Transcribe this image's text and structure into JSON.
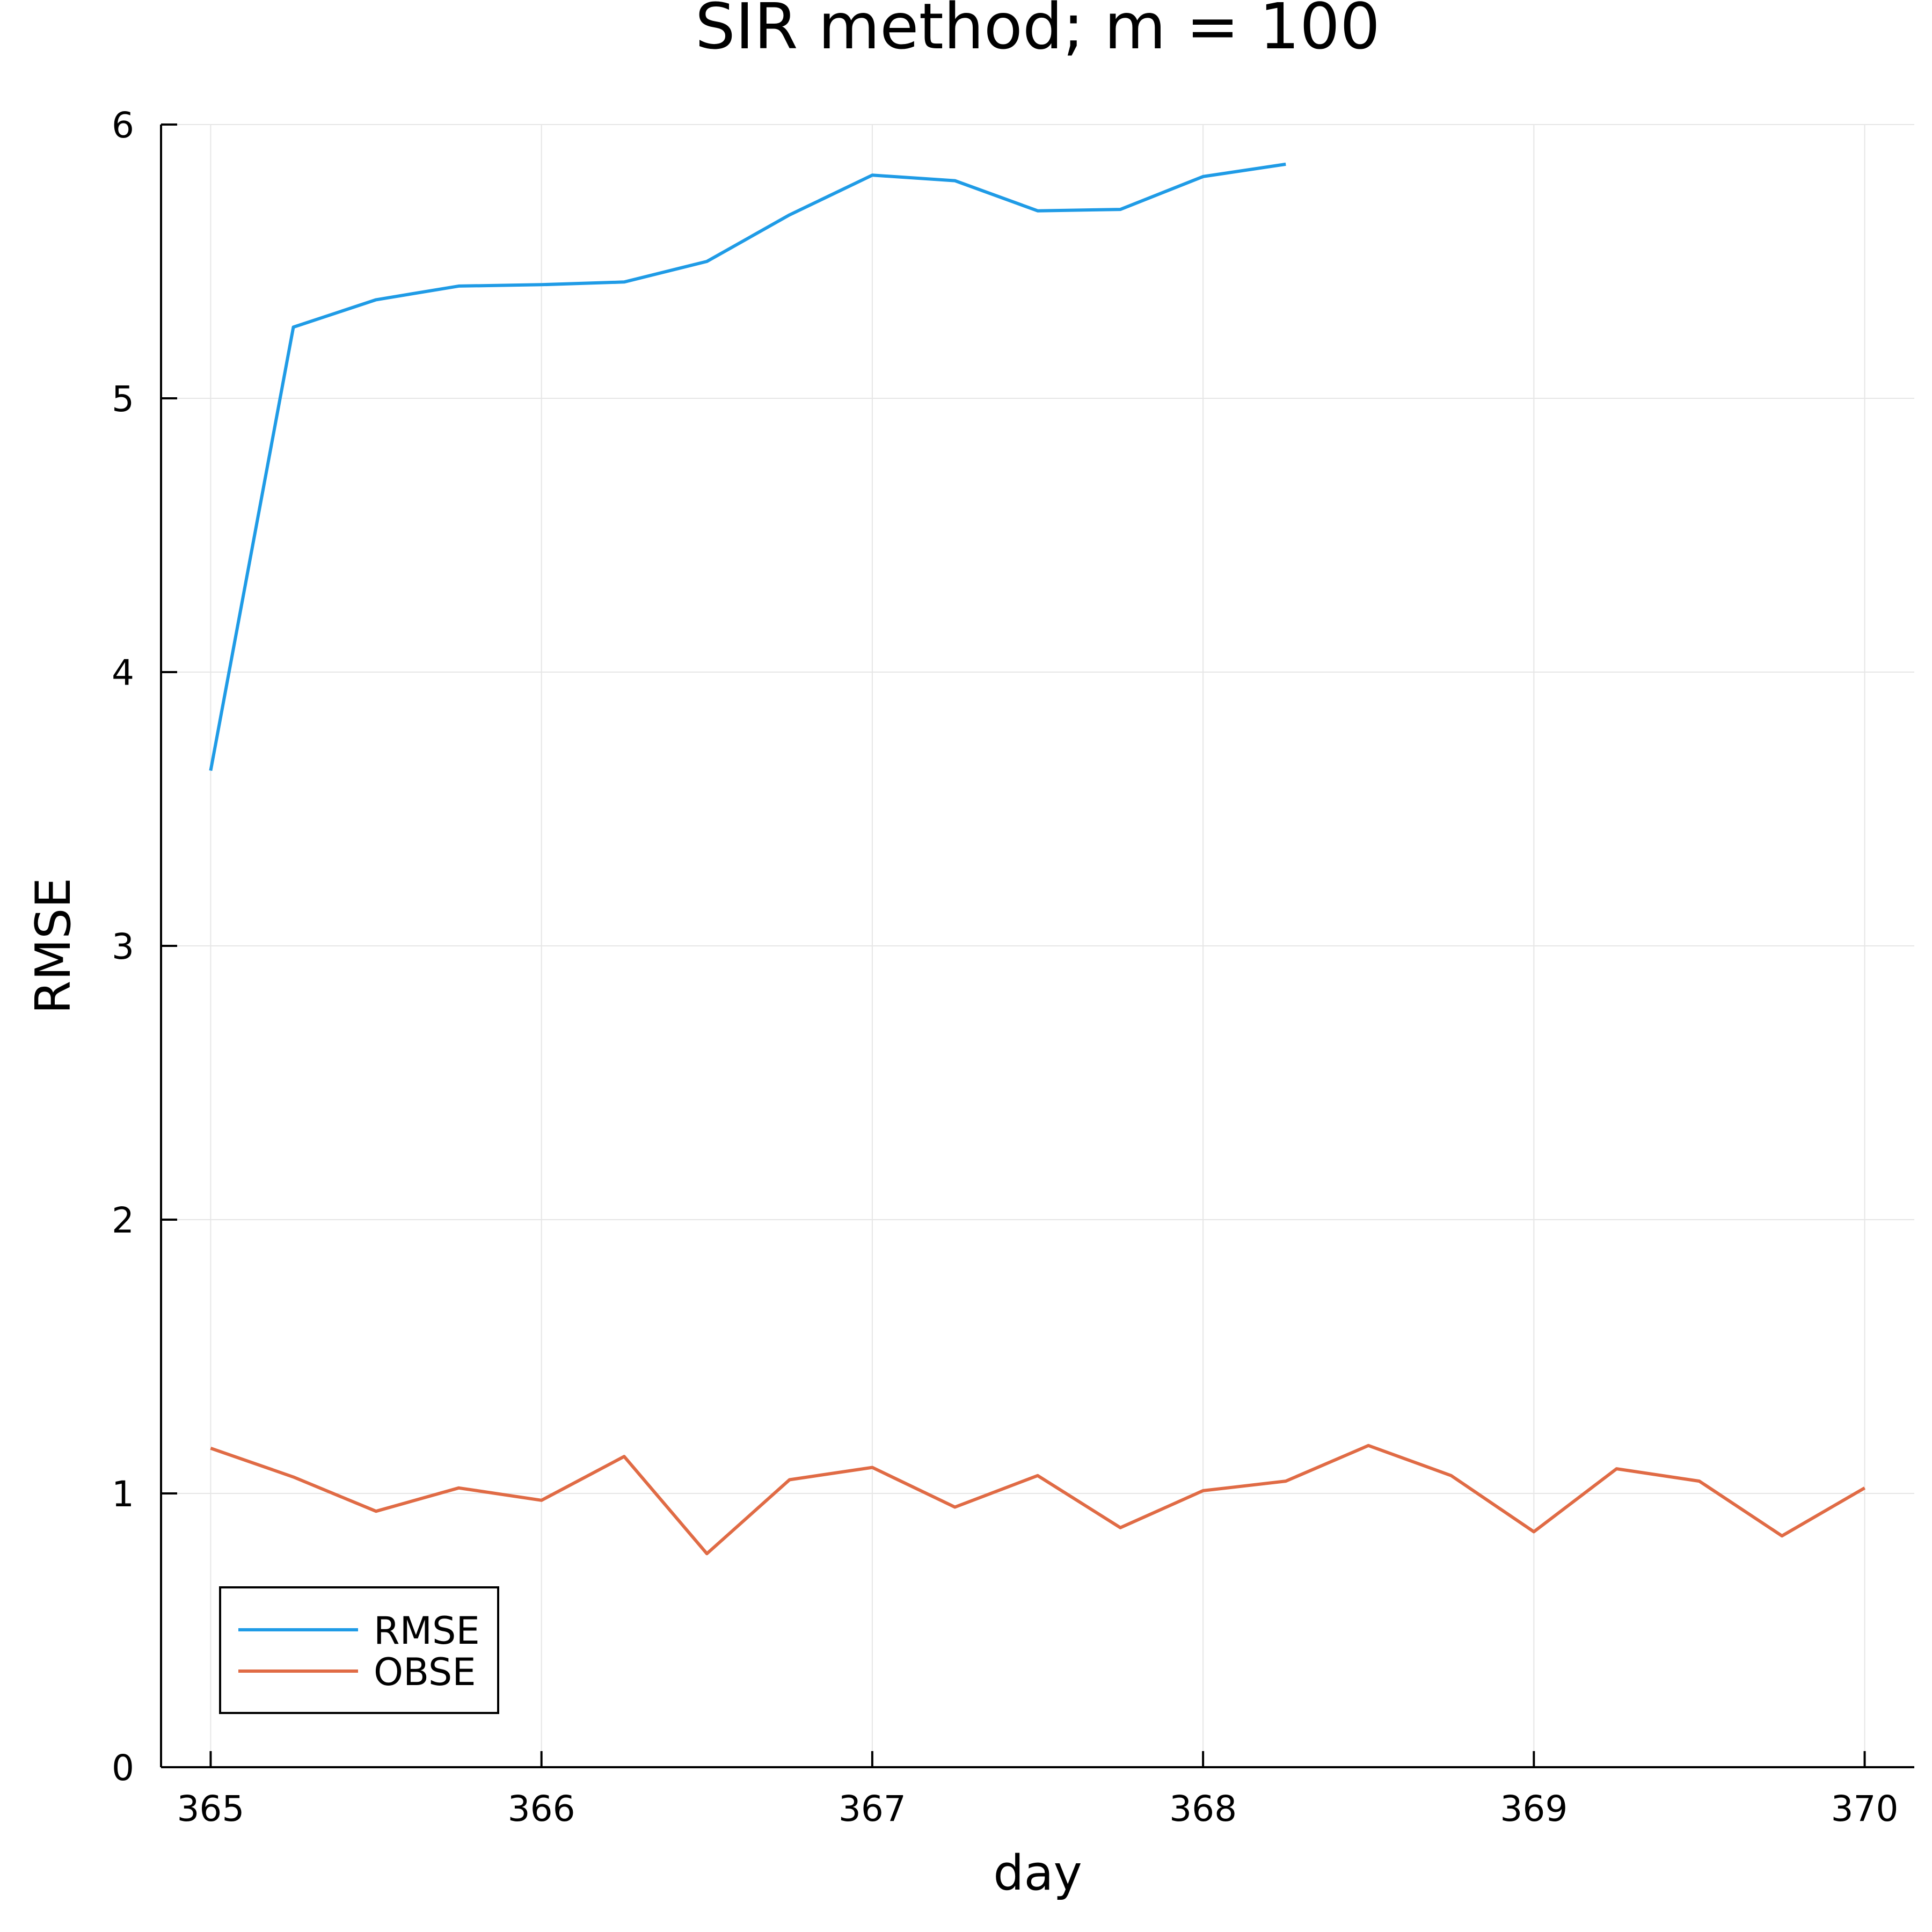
{
  "chart_data": {
    "type": "line",
    "title": "SIR method; m = 100",
    "xlabel": "day",
    "ylabel": "RMSE",
    "xlim": [
      364.85,
      370.15
    ],
    "ylim": [
      0,
      6
    ],
    "x_ticks": [
      "365",
      "366",
      "367",
      "368",
      "369",
      "370"
    ],
    "y_ticks": [
      "0",
      "1",
      "2",
      "3",
      "4",
      "5",
      "6"
    ],
    "grid": true,
    "legend_position": "bottom-left",
    "series": [
      {
        "name": "RMSE",
        "color": "#1f9be6",
        "x": [
          365,
          365.25,
          365.5,
          365.75,
          366,
          366.25,
          366.5,
          366.75,
          367,
          367.25,
          367.5,
          367.75,
          368,
          368.25
        ],
        "y": [
          3.64,
          5.26,
          5.36,
          5.41,
          5.415,
          5.425,
          5.5,
          5.67,
          5.815,
          5.795,
          5.685,
          5.69,
          5.81,
          5.855
        ]
      },
      {
        "name": "OBSE",
        "color": "#e06b45",
        "x": [
          365,
          365.25,
          365.5,
          365.75,
          366,
          366.25,
          366.5,
          366.75,
          367,
          367.25,
          367.5,
          367.75,
          368,
          368.25,
          368.5,
          368.75,
          369,
          369.25,
          369.5,
          369.75,
          370
        ],
        "y": [
          1.165,
          1.06,
          0.935,
          1.02,
          0.975,
          1.135,
          0.78,
          1.05,
          1.095,
          0.95,
          1.065,
          0.875,
          1.01,
          1.045,
          1.175,
          1.065,
          0.86,
          1.09,
          1.045,
          0.845,
          1.02
        ]
      }
    ]
  }
}
